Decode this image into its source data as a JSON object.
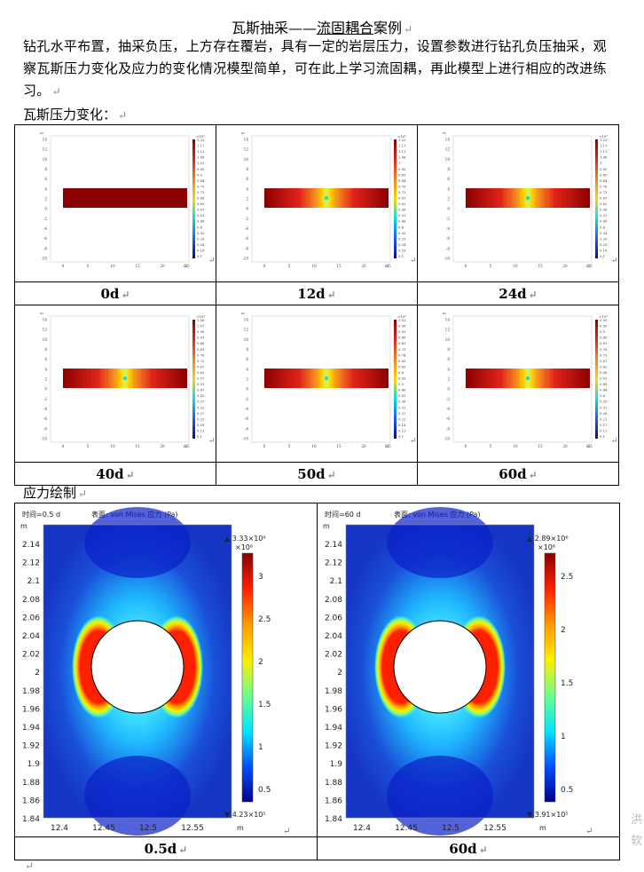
{
  "doc": {
    "title_part1": "瓦斯抽采——",
    "title_part2": "流固耦合",
    "title_part3": "案例",
    "paragraph": "钻孔水平布置，抽采负压，上方存在覆岩，具有一定的岩层压力，设置参数进行钻孔负压抽采，观察瓦斯压力变化及应力的变化情况模型简单，可在此上学习流固耦，再此模型上进行相应的改进练习。",
    "section1": "瓦斯压力变化：",
    "section2": "应力绘制",
    "return_mark": "↵",
    "side_text_1": "洪",
    "side_text_2": "软"
  },
  "pressure_panels": [
    {
      "label": "0d",
      "exp": "×10⁶",
      "scale": [
        "1.22",
        "1.17",
        "1.12",
        "1.06",
        "1.01",
        "0.95",
        "0.9",
        "0.84",
        "0.79",
        "0.73",
        "0.68",
        "0.62",
        "0.57",
        "0.51",
        "0.46",
        "0.4",
        "0.35",
        "0.29",
        "0.24",
        "0.18",
        "0.1"
      ]
    },
    {
      "label": "12d",
      "exp": "×10⁶",
      "scale": [
        "1.22",
        "1.17",
        "1.11",
        "1.06",
        "1",
        "0.95",
        "0.89",
        "0.84",
        "0.78",
        "0.73",
        "0.67",
        "0.62",
        "0.56",
        "0.51",
        "0.46",
        "0.4",
        "0.35",
        "0.29",
        "0.24",
        "0.18",
        "0.1"
      ]
    },
    {
      "label": "24d",
      "exp": "×10⁶",
      "scale": [
        "1.22",
        "1.17",
        "1.11",
        "1.06",
        "1",
        "0.95",
        "0.89",
        "0.84",
        "0.78",
        "0.73",
        "0.67",
        "0.62",
        "0.56",
        "0.51",
        "0.45",
        "0.4",
        "0.34",
        "0.29",
        "0.23",
        "0.18",
        "0.1"
      ]
    },
    {
      "label": "40d",
      "exp": "×10⁶",
      "scale": [
        "1.06",
        "1.01",
        "0.96",
        "0.91",
        "0.86",
        "0.81",
        "0.76",
        "0.72",
        "0.67",
        "0.62",
        "0.57",
        "0.52",
        "0.47",
        "0.42",
        "0.37",
        "0.32",
        "0.27",
        "0.22",
        "0.18",
        "0.13",
        "0.1"
      ]
    },
    {
      "label": "50d",
      "exp": "×10⁶",
      "scale": [
        "1.02",
        "0.98",
        "0.93",
        "0.88",
        "0.83",
        "0.79",
        "0.74",
        "0.69",
        "0.65",
        "0.6",
        "0.55",
        "0.5",
        "0.46",
        "0.41",
        "0.36",
        "0.31",
        "0.27",
        "0.22",
        "0.18",
        "0.13",
        "0.1"
      ]
    },
    {
      "label": "60d",
      "exp": "×10⁶",
      "scale": [
        "0.99",
        "0.95",
        "0.9",
        "0.85",
        "0.81",
        "0.76",
        "0.72",
        "0.67",
        "0.62",
        "0.58",
        "0.53",
        "0.49",
        "0.44",
        "0.4",
        "0.35",
        "0.31",
        "0.26",
        "0.21",
        "0.17",
        "0.12",
        "0.1"
      ]
    }
  ],
  "pressure_axes": {
    "y_ticks": [
      "14",
      "12",
      "10",
      "8",
      "6",
      "4",
      "2",
      "0",
      "-2",
      "-4",
      "-6",
      "-8",
      "-10"
    ],
    "x_ticks": [
      "0",
      "5",
      "10",
      "15",
      "20",
      "25"
    ],
    "unit": "m"
  },
  "stress_panels": [
    {
      "label": "0.5d",
      "time_text": "时间=0.5 d",
      "surface_text": "表面: von Mises 应力 (Pa)",
      "max": "▲ 3.33×10⁶",
      "min": "▼ 4.23×10⁵",
      "exp": "×10⁶",
      "scale": [
        "3",
        "2.5",
        "2",
        "1.5",
        "1",
        "0.5"
      ]
    },
    {
      "label": "60d",
      "time_text": "时间=60 d",
      "surface_text": "表面: von Mises 应力 (Pa)",
      "max": "▲ 2.89×10⁶",
      "min": "▼ 3.91×10⁵",
      "exp": "×10⁶",
      "scale": [
        "2.5",
        "2",
        "1.5",
        "1",
        "0.5"
      ]
    }
  ],
  "stress_axes": {
    "y_ticks": [
      "2.14",
      "2.12",
      "2.1",
      "2.08",
      "2.06",
      "2.04",
      "2.02",
      "2",
      "1.98",
      "1.96",
      "1.94",
      "1.92",
      "1.9",
      "1.88",
      "1.86",
      "1.84"
    ],
    "x_ticks": [
      "12.4",
      "12.45",
      "12.5",
      "12.55"
    ],
    "unit": "m"
  },
  "colors": {
    "dark_red": "#8b0000",
    "red": "#e2231a",
    "orange": "#f58220",
    "yellow": "#ffd400",
    "cyan": "#00e0e0",
    "blue": "#1e5aff",
    "navy": "#0a0a8c"
  }
}
